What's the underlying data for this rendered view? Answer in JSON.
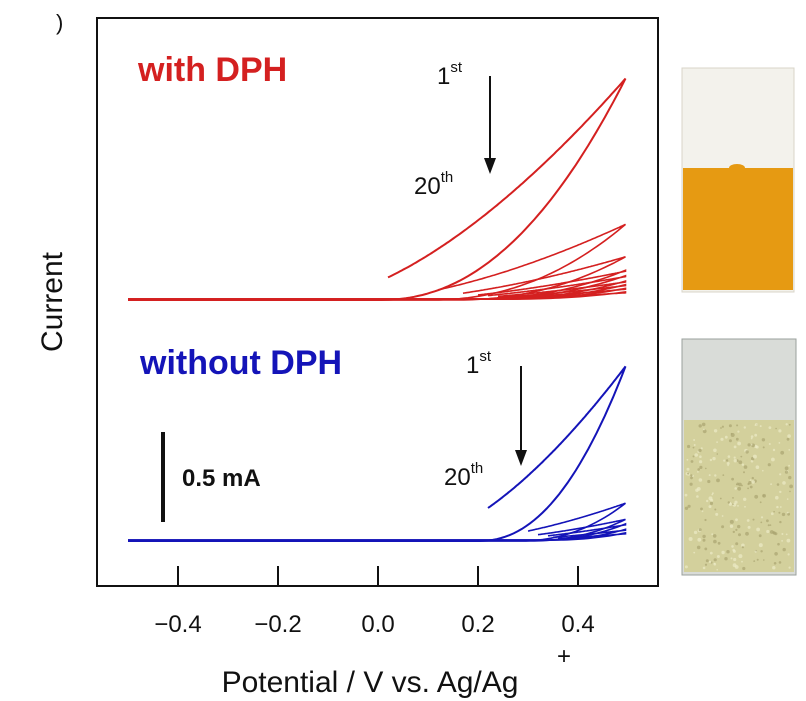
{
  "chart_data": {
    "type": "line",
    "title": "",
    "xlabel": "Potential / V vs. Ag/Ag",
    "xlabel_superscript": "+",
    "ylabel": "Current",
    "xlim": [
      -0.53,
      0.53
    ],
    "x_ticks": [
      -0.4,
      -0.2,
      0.0,
      0.2,
      0.4
    ],
    "x_tick_labels": [
      "−0.4",
      "−0.2",
      "0.0",
      "0.2",
      "0.4"
    ],
    "y_units": "mA",
    "grid": false,
    "legend": "none",
    "scale_bar": {
      "label": "0.5 mA",
      "value_mA": 0.5
    },
    "panels": [
      {
        "label": "with DPH",
        "color": "#d42020",
        "baseline_mA": 0.0,
        "annotation": {
          "first": "1",
          "first_sup": "st",
          "last": "20",
          "last_sup": "th"
        },
        "cycles": [
          {
            "cycle": 1,
            "peak_mA": 1.23,
            "onset_V": 0.0
          },
          {
            "cycle": 2,
            "peak_mA": 0.42,
            "onset_V": 0.1
          },
          {
            "cycle": 3,
            "peak_mA": 0.24,
            "onset_V": 0.15
          },
          {
            "cycle": 4,
            "peak_mA": 0.16,
            "onset_V": 0.18
          },
          {
            "cycle": 5,
            "peak_mA": 0.13,
            "onset_V": 0.2
          },
          {
            "cycle": 8,
            "peak_mA": 0.1,
            "onset_V": 0.22
          },
          {
            "cycle": 12,
            "peak_mA": 0.08,
            "onset_V": 0.24
          },
          {
            "cycle": 16,
            "peak_mA": 0.06,
            "onset_V": 0.25
          },
          {
            "cycle": 20,
            "peak_mA": 0.04,
            "onset_V": 0.26
          }
        ]
      },
      {
        "label": "without DPH",
        "color": "#1414b8",
        "baseline_mA": 0.0,
        "annotation": {
          "first": "1",
          "first_sup": "st",
          "last": "20",
          "last_sup": "th"
        },
        "cycles": [
          {
            "cycle": 1,
            "peak_mA": 0.97,
            "onset_V": 0.2
          },
          {
            "cycle": 2,
            "peak_mA": 0.21,
            "onset_V": 0.28
          },
          {
            "cycle": 3,
            "peak_mA": 0.12,
            "onset_V": 0.3
          },
          {
            "cycle": 5,
            "peak_mA": 0.09,
            "onset_V": 0.32
          },
          {
            "cycle": 10,
            "peak_mA": 0.06,
            "onset_V": 0.33
          },
          {
            "cycle": 20,
            "peak_mA": 0.04,
            "onset_V": 0.34
          }
        ]
      }
    ]
  },
  "photos": {
    "with_dph": {
      "top_color": "#f3f2ec",
      "film_color": "#e69a12",
      "border_color": "#d8d4c9"
    },
    "without_dph": {
      "top_color": "#d9dcd8",
      "film_color": "#d3d09c",
      "border_color": "#9aa09c"
    }
  }
}
